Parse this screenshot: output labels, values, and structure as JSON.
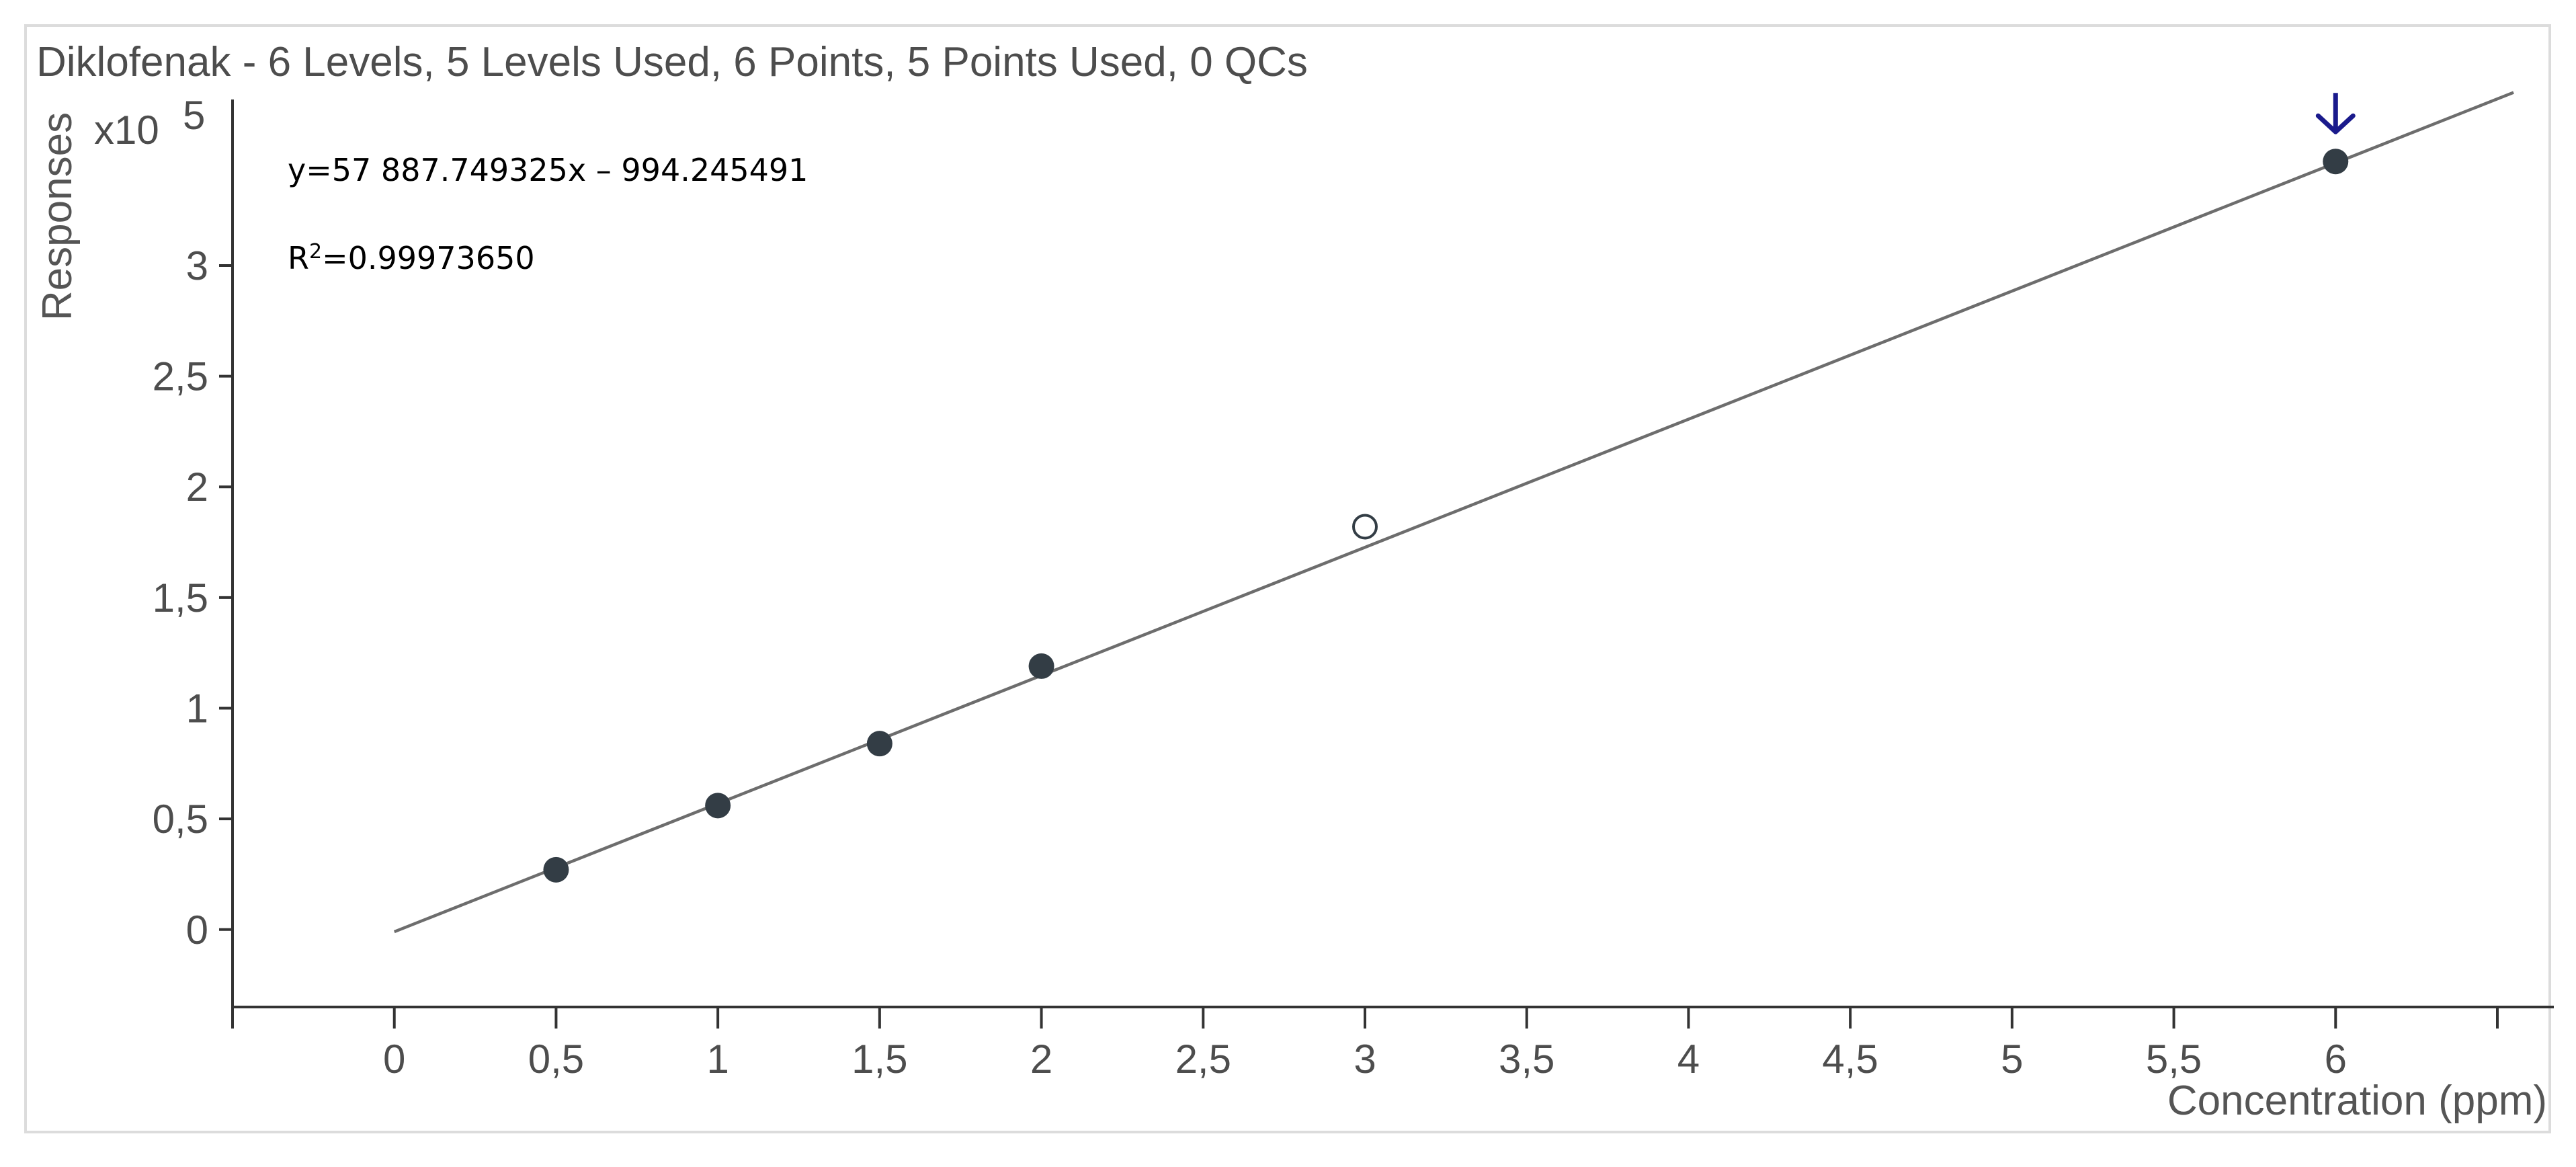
{
  "colors": {
    "axis": "#333333",
    "fit_line": "#6d6d6d",
    "point_used": "#333d45",
    "point_excluded": "#ffffff",
    "marker_arrow": "#1a1a8c",
    "text": "#4d4d4d",
    "panel_border": "#dcdcdc"
  },
  "chart_data": {
    "type": "scatter",
    "title": "Diklofenak - 6 Levels, 5 Levels Used, 6 Points, 5 Points Used, 0 QCs",
    "xlabel": "Concentration (ppm)",
    "ylabel": "Responses",
    "y_scale_label": "x10",
    "y_scale_exponent": "5",
    "xlim": [
      -0.5,
      6.5
    ],
    "ylim": [
      -0.35,
      3.75
    ],
    "x_ticks": [
      -0.5,
      0,
      0.5,
      1,
      1.5,
      2,
      2.5,
      3,
      3.5,
      4,
      4.5,
      5,
      5.5,
      6,
      6.5
    ],
    "x_tick_labels": [
      {
        "value": 0,
        "label": "0"
      },
      {
        "value": 0.5,
        "label": "0,5"
      },
      {
        "value": 1,
        "label": "1"
      },
      {
        "value": 1.5,
        "label": "1,5"
      },
      {
        "value": 2,
        "label": "2"
      },
      {
        "value": 2.5,
        "label": "2,5"
      },
      {
        "value": 3,
        "label": "3"
      },
      {
        "value": 3.5,
        "label": "3,5"
      },
      {
        "value": 4,
        "label": "4"
      },
      {
        "value": 4.5,
        "label": "4,5"
      },
      {
        "value": 5,
        "label": "5"
      },
      {
        "value": 5.5,
        "label": "5,5"
      },
      {
        "value": 6,
        "label": "6"
      }
    ],
    "y_ticks": [
      {
        "value": 0,
        "label": "0"
      },
      {
        "value": 0.5,
        "label": "0,5"
      },
      {
        "value": 1,
        "label": "1"
      },
      {
        "value": 1.5,
        "label": "1,5"
      },
      {
        "value": 2,
        "label": "2"
      },
      {
        "value": 2.5,
        "label": "2,5"
      },
      {
        "value": 3,
        "label": "3"
      }
    ],
    "points": [
      {
        "x": 0.5,
        "y": 0.27,
        "used": true
      },
      {
        "x": 1.0,
        "y": 0.56,
        "used": true
      },
      {
        "x": 1.5,
        "y": 0.84,
        "used": true
      },
      {
        "x": 2.0,
        "y": 1.19,
        "used": true
      },
      {
        "x": 3.0,
        "y": 1.82,
        "used": false
      },
      {
        "x": 6.0,
        "y": 3.47,
        "used": true
      }
    ],
    "fit_line": {
      "x_start": 0.0,
      "x_end": 6.55,
      "slope": 0.5788775,
      "intercept": -0.0099425
    },
    "highlight_x": 6.0,
    "equation": "y=57 887.749325x – 994.245491",
    "r_squared_prefix": "R",
    "r_squared_sup": "2",
    "r_squared_value": "=0.99973650",
    "grid": false,
    "legend": "none"
  }
}
